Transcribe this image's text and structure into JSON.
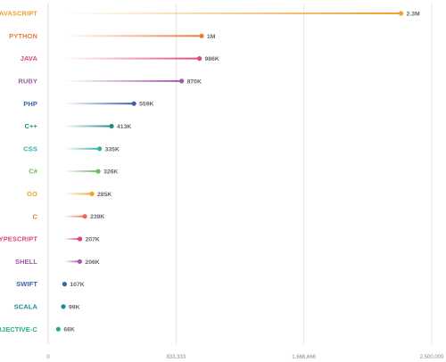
{
  "chart_data": {
    "type": "bar",
    "style": "lollipop",
    "title": "",
    "xlabel": "",
    "ylabel": "",
    "xlim": [
      0,
      2500000
    ],
    "x_ticks": [
      0,
      833333,
      1666666,
      2500000
    ],
    "x_tick_labels": [
      "0",
      "833,333",
      "1,666,666",
      "2,500,000"
    ],
    "grid": true,
    "categories": [
      "JAVASCRIPT",
      "PYTHON",
      "JAVA",
      "RUBY",
      "PHP",
      "C++",
      "CSS",
      "C#",
      "GO",
      "C",
      "TYPESCRIPT",
      "SHELL",
      "SWIFT",
      "SCALA",
      "OBJECTIVE-C"
    ],
    "values": [
      2300000,
      1000000,
      986000,
      870000,
      559000,
      413000,
      335000,
      326000,
      285000,
      239000,
      207000,
      206000,
      107000,
      99000,
      66000
    ],
    "value_labels": [
      "2.3M",
      "1M",
      "986K",
      "870K",
      "559K",
      "413K",
      "335K",
      "326K",
      "285K",
      "239K",
      "207K",
      "206K",
      "107K",
      "99K",
      "66K"
    ],
    "colors": [
      "#f0a030",
      "#ee7a3a",
      "#e04a73",
      "#a05aa8",
      "#3b62a8",
      "#1f8a8a",
      "#2bb3a6",
      "#6cba5e",
      "#f0a030",
      "#ee6a4c",
      "#e0457a",
      "#a05aa8",
      "#3b62a8",
      "#1f8a8a",
      "#1fae8c"
    ]
  }
}
